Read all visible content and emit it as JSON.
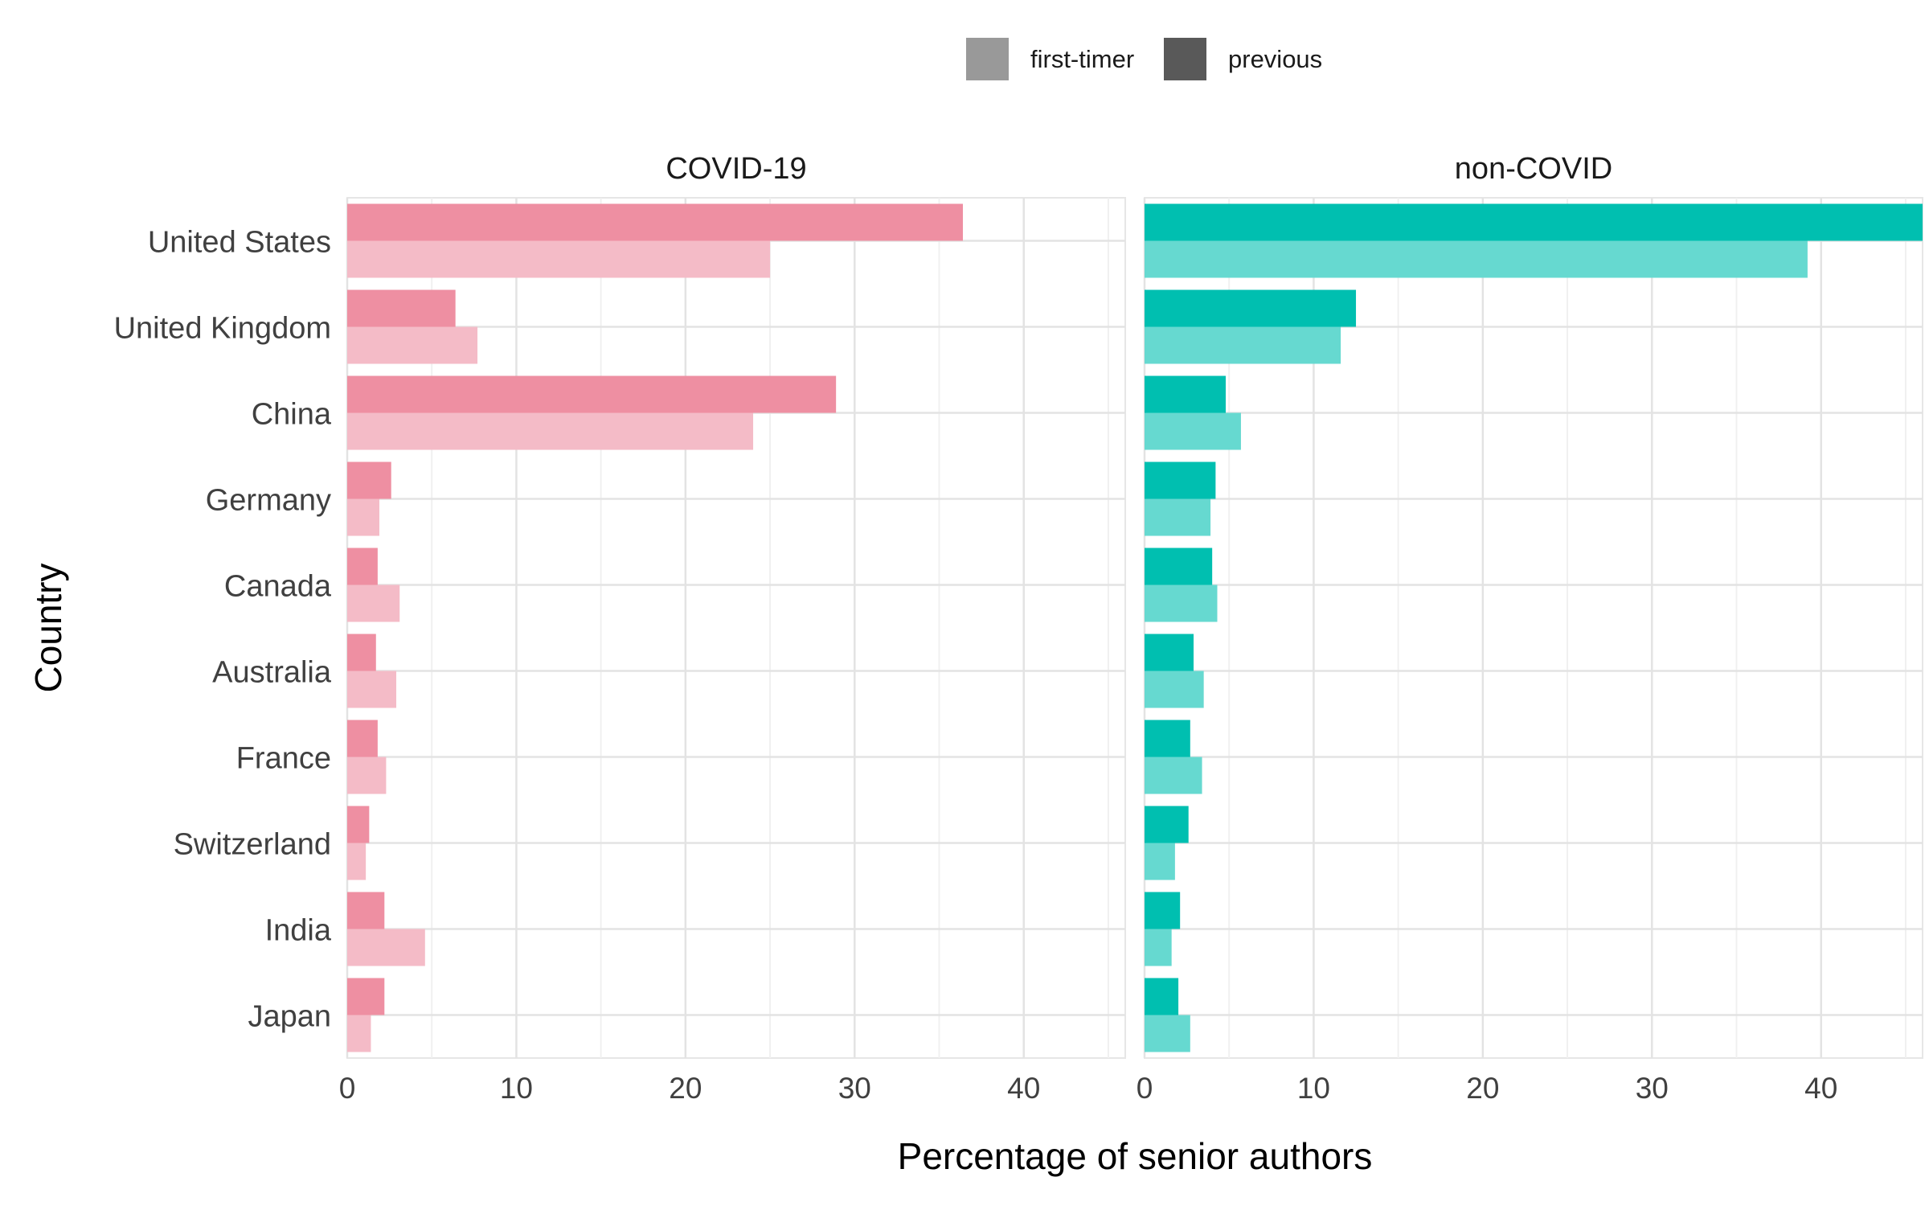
{
  "legend": {
    "position": "top",
    "items": [
      {
        "label": "first-timer",
        "color": "#999999"
      },
      {
        "label": "previous",
        "color": "#595959"
      }
    ]
  },
  "chart_data": {
    "type": "bar",
    "orientation": "horizontal",
    "grouping": "faceted-dodged",
    "xlabel": "Percentage of senior authors",
    "ylabel": "Country",
    "xlim": [
      0,
      46
    ],
    "xticks": [
      0,
      10,
      20,
      30,
      40
    ],
    "grid": true,
    "legend_position": "top",
    "categories": [
      "United States",
      "United Kingdom",
      "China",
      "Germany",
      "Canada",
      "Australia",
      "France",
      "Switzerland",
      "India",
      "Japan"
    ],
    "facets": [
      {
        "title": "COVID-19",
        "color_previous": "#EE8FA2",
        "color_first_timer": "#F4BBC7",
        "series": [
          {
            "name": "previous",
            "values": [
              36.4,
              6.4,
              28.9,
              2.6,
              1.8,
              1.7,
              1.8,
              1.3,
              2.2,
              2.2
            ]
          },
          {
            "name": "first-timer",
            "values": [
              25.0,
              7.7,
              24.0,
              1.9,
              3.1,
              2.9,
              2.3,
              1.1,
              4.6,
              1.4
            ]
          }
        ]
      },
      {
        "title": "non-COVID",
        "color_previous": "#00BFB0",
        "color_first_timer": "#66D9D0",
        "series": [
          {
            "name": "previous",
            "values": [
              46.0,
              12.5,
              4.8,
              4.2,
              4.0,
              2.9,
              2.7,
              2.6,
              2.1,
              2.0
            ]
          },
          {
            "name": "first-timer",
            "values": [
              39.2,
              11.6,
              5.7,
              3.9,
              4.3,
              3.5,
              3.4,
              1.8,
              1.6,
              2.7
            ]
          }
        ]
      }
    ]
  }
}
